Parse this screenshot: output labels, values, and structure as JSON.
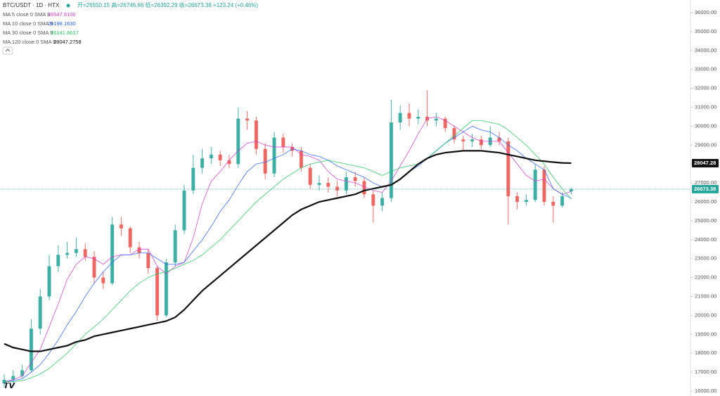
{
  "chart_data": {
    "type": "candlestick",
    "title": "BTC/USDT · 1D · HTX",
    "ohlc_label": "开=26550.15 高=26746.66 低=26392.29 收=26673.38 +123.24 (+0.46%)",
    "up_color": "#26a69a",
    "down_color": "#ef5350",
    "open": [
      16400,
      16600,
      16800,
      17100,
      19300,
      21000,
      22600,
      23200,
      23300,
      23500,
      23100,
      22000,
      21700,
      24800,
      24600,
      23600,
      23300,
      22500,
      20000,
      22800,
      24500,
      26600,
      27800,
      28300,
      28500,
      28200,
      28000,
      30400,
      30300,
      28800,
      27500,
      29400,
      28900,
      28700,
      27800,
      26900,
      27000,
      26800,
      26600,
      27300,
      27100,
      26400,
      25800,
      26200,
      30200,
      30700,
      30400,
      30500,
      30300,
      30400,
      29900,
      29300,
      29200,
      29300,
      29000,
      29400,
      29200,
      26300,
      26000,
      26100,
      27700,
      26000,
      25800,
      26550.15
    ],
    "high": [
      16900,
      17100,
      17400,
      19800,
      21400,
      23200,
      23700,
      23900,
      24100,
      23800,
      23400,
      22300,
      25200,
      25200,
      24700,
      23900,
      23500,
      22600,
      23000,
      24800,
      26900,
      28500,
      28800,
      28900,
      28700,
      28500,
      31000,
      30800,
      30500,
      29100,
      29700,
      29600,
      29100,
      28900,
      28000,
      27400,
      27300,
      27100,
      27600,
      27600,
      27300,
      26600,
      26500,
      31400,
      31100,
      31200,
      30900,
      31900,
      30700,
      30500,
      30000,
      29500,
      29600,
      29500,
      30000,
      29700,
      29400,
      26500,
      26400,
      28000,
      27900,
      26300,
      26500,
      26746.66
    ],
    "low": [
      16200,
      16400,
      16700,
      17000,
      19000,
      20800,
      22300,
      23000,
      23100,
      22900,
      21700,
      21400,
      21600,
      24200,
      23300,
      23000,
      22200,
      19700,
      19900,
      22600,
      24300,
      26400,
      27500,
      28000,
      27900,
      27800,
      27800,
      29800,
      28500,
      27200,
      27300,
      28600,
      28400,
      27600,
      26700,
      26600,
      26500,
      26300,
      26400,
      26800,
      26200,
      24900,
      25500,
      26000,
      29800,
      30000,
      30100,
      30000,
      30000,
      29700,
      29100,
      28700,
      28900,
      28800,
      28900,
      29000,
      24800,
      25600,
      25800,
      26000,
      25800,
      24900,
      25700,
      26392.29
    ],
    "close": [
      16600,
      16800,
      17100,
      19300,
      21000,
      22600,
      23200,
      23300,
      23500,
      23100,
      22000,
      21700,
      24800,
      24600,
      23600,
      23300,
      22500,
      20000,
      22800,
      24500,
      26600,
      27800,
      28300,
      28500,
      28200,
      28000,
      30400,
      30300,
      28800,
      27500,
      29400,
      28900,
      28700,
      27800,
      26900,
      27000,
      26800,
      26600,
      27300,
      27100,
      26400,
      25800,
      26200,
      30200,
      30700,
      30400,
      30500,
      30300,
      30400,
      29900,
      29300,
      29200,
      29300,
      29000,
      29400,
      29200,
      26300,
      26000,
      26100,
      27700,
      26000,
      25800,
      26300,
      26673.38
    ],
    "series": [
      {
        "name": "MA 5 close 0 SMA 9",
        "color": "#d63ad0",
        "value_label": "26547.6100",
        "values": [
          16500,
          16600,
          16800,
          17500,
          18200,
          19400,
          20600,
          21900,
          22700,
          23100,
          23000,
          22700,
          23100,
          23200,
          23200,
          23500,
          23500,
          22600,
          22200,
          22600,
          22800,
          24100,
          25900,
          27100,
          27600,
          28200,
          28700,
          29100,
          29200,
          29000,
          28900,
          28900,
          28900,
          28500,
          28400,
          28200,
          27600,
          27200,
          27100,
          27000,
          26800,
          26600,
          26500,
          27100,
          27900,
          28700,
          29600,
          30400,
          30500,
          30300,
          30000,
          29700,
          29400,
          29200,
          29200,
          29200,
          28600,
          28000,
          27400,
          27100,
          27200,
          26700,
          26400,
          26547.61
        ]
      },
      {
        "name": "MA 10 close 0 SMA 9",
        "color": "#2962ff",
        "value_label": "26198.1630",
        "values": [
          16500,
          16550,
          16650,
          17000,
          17400,
          18000,
          18700,
          19500,
          20200,
          21000,
          21700,
          22300,
          22800,
          23200,
          23200,
          23300,
          23300,
          23000,
          22700,
          22700,
          22800,
          23400,
          24000,
          24700,
          25500,
          26100,
          26900,
          27600,
          28000,
          28100,
          28300,
          28500,
          28800,
          28700,
          28500,
          28400,
          28200,
          27900,
          27700,
          27500,
          27300,
          27000,
          26800,
          26900,
          27200,
          27600,
          27900,
          28300,
          28700,
          29100,
          29400,
          29700,
          30000,
          29800,
          29700,
          29400,
          29000,
          28700,
          28300,
          28000,
          27700,
          26700,
          26400,
          26198.163
        ]
      },
      {
        "name": "MA 30 close 0 SMA 9",
        "color": "#22c55e",
        "value_label": "26141.6617",
        "values": [
          16500,
          16500,
          16550,
          16700,
          16900,
          17200,
          17600,
          18000,
          18500,
          19000,
          19400,
          19800,
          20300,
          20800,
          21300,
          21700,
          22000,
          22200,
          22300,
          22500,
          22700,
          22900,
          23200,
          23600,
          24000,
          24500,
          25000,
          25500,
          26000,
          26400,
          26800,
          27200,
          27500,
          27800,
          28000,
          28100,
          28200,
          28100,
          28000,
          27900,
          27800,
          27600,
          27400,
          27600,
          27800,
          27900,
          28000,
          28300,
          28700,
          29100,
          29500,
          29900,
          30300,
          30300,
          30200,
          30100,
          29800,
          29400,
          29000,
          28500,
          28000,
          27300,
          26700,
          26141.6617
        ]
      },
      {
        "name": "MA 120 close 0 SMA 9",
        "color": "#111111",
        "value_label": "28047.2758",
        "values": [
          18500,
          18300,
          18200,
          18100,
          18100,
          18200,
          18300,
          18400,
          18600,
          18700,
          18900,
          19000,
          19100,
          19200,
          19300,
          19400,
          19500,
          19600,
          19700,
          19900,
          20300,
          20800,
          21300,
          21700,
          22100,
          22500,
          22900,
          23300,
          23700,
          24100,
          24500,
          24900,
          25300,
          25600,
          25800,
          26000,
          26100,
          26200,
          26300,
          26400,
          26600,
          26700,
          26800,
          26900,
          27200,
          27600,
          28000,
          28300,
          28500,
          28600,
          28650,
          28700,
          28700,
          28700,
          28650,
          28600,
          28500,
          28400,
          28300,
          28200,
          28150,
          28100,
          28060,
          28047.2758
        ]
      }
    ],
    "ylim": [
      15740,
      36670
    ],
    "yticks": [
      {
        "value": 16000,
        "label": "16000.00"
      },
      {
        "value": 17000,
        "label": "17000.00"
      },
      {
        "value": 18000,
        "label": "18000.00"
      },
      {
        "value": 19000,
        "label": "19000.00"
      },
      {
        "value": 20000,
        "label": "20000.00"
      },
      {
        "value": 21000,
        "label": "21000.00"
      },
      {
        "value": 22000,
        "label": "22000.00"
      },
      {
        "value": 23000,
        "label": "23000.00"
      },
      {
        "value": 24000,
        "label": "24000.00"
      },
      {
        "value": 25000,
        "label": "25000.00"
      },
      {
        "value": 26000,
        "label": "26000.00"
      },
      {
        "value": 27000,
        "label": "27000.00"
      },
      {
        "value": 28000,
        "label": "28000.00"
      },
      {
        "value": 29000,
        "label": "29000.00"
      },
      {
        "value": 30000,
        "label": "30000.00"
      },
      {
        "value": 31000,
        "label": "31000.00"
      },
      {
        "value": 32000,
        "label": "32000.00"
      },
      {
        "value": 33000,
        "label": "33000.00"
      },
      {
        "value": 34000,
        "label": "34000.00"
      },
      {
        "value": 35000,
        "label": "35000.00"
      },
      {
        "value": 36000,
        "label": "36000.00"
      }
    ],
    "price_labels": [
      {
        "value": 28047.28,
        "label": "28047.28",
        "color": "#111111"
      },
      {
        "value": 26673.38,
        "label": "26673.38",
        "color": "#26a69a"
      }
    ]
  }
}
